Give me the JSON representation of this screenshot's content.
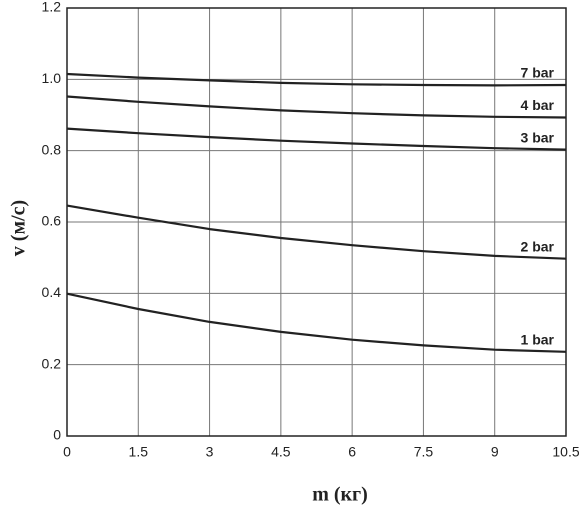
{
  "chart_data": {
    "type": "line",
    "x_label": "m (кг)",
    "y_label": "v (м/с)",
    "x": [
      0,
      1.5,
      3,
      4.5,
      6,
      7.5,
      9,
      10.5
    ],
    "series": [
      {
        "name": "7 bar",
        "color": "#222222",
        "values": [
          1.015,
          1.005,
          0.997,
          0.99,
          0.986,
          0.984,
          0.983,
          0.984
        ]
      },
      {
        "name": "4 bar",
        "color": "#222222",
        "values": [
          0.952,
          0.937,
          0.924,
          0.913,
          0.905,
          0.899,
          0.895,
          0.893
        ]
      },
      {
        "name": "3 bar",
        "color": "#222222",
        "values": [
          0.862,
          0.849,
          0.838,
          0.828,
          0.82,
          0.813,
          0.807,
          0.803
        ]
      },
      {
        "name": "2 bar",
        "color": "#222222",
        "values": [
          0.646,
          0.612,
          0.58,
          0.555,
          0.535,
          0.518,
          0.505,
          0.497
        ]
      },
      {
        "name": "1 bar",
        "color": "#222222",
        "values": [
          0.399,
          0.356,
          0.32,
          0.292,
          0.27,
          0.254,
          0.242,
          0.236
        ]
      }
    ],
    "xlim": [
      0,
      10.5
    ],
    "xticks": [
      0,
      1.5,
      3,
      4.5,
      6,
      7.5,
      9,
      10.5
    ],
    "ylim": [
      0,
      1.2
    ],
    "yticks": [
      0,
      0.2,
      0.4,
      0.6,
      0.8,
      {
        "value": 1,
        "label": "1.0"
      },
      1.2
    ],
    "grid": true
  }
}
